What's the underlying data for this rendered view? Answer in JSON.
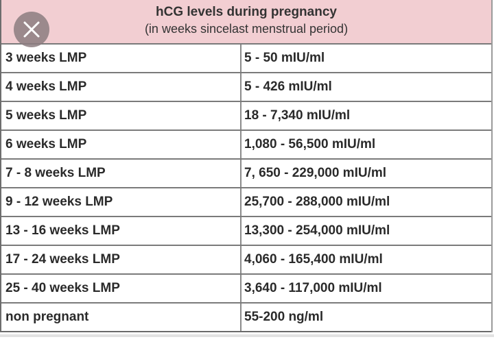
{
  "table": {
    "title": "hCG levels during pregnancy",
    "subtitle": "(in weeks sincelast menstrual period)",
    "rows": [
      {
        "weeks": "3 weeks LMP",
        "level": "5 - 50 mIU/ml"
      },
      {
        "weeks": "4 weeks LMP",
        "level": "5 - 426 mIU/ml"
      },
      {
        "weeks": "5 weeks LMP",
        "level": "18 - 7,340 mIU/ml"
      },
      {
        "weeks": "6 weeks LMP",
        "level": "1,080 - 56,500 mIU/ml"
      },
      {
        "weeks": "7 - 8 weeks LMP",
        "level": "7, 650 - 229,000 mIU/ml"
      },
      {
        "weeks": "9 - 12 weeks LMP",
        "level": "25,700 - 288,000 mIU/ml"
      },
      {
        "weeks": "13 - 16 weeks LMP",
        "level": "13,300 - 254,000 mIU/ml"
      },
      {
        "weeks": "17 - 24 weeks LMP",
        "level": "4,060 - 165,400 mIU/ml"
      },
      {
        "weeks": "25 - 40 weeks LMP",
        "level": "3,640 - 117,000 mIU/ml"
      },
      {
        "weeks": "non pregnant",
        "level": "55-200 ng/ml"
      }
    ]
  },
  "colors": {
    "header_bg": "#f2ced2",
    "close_bg": "#8c7d80"
  },
  "icons": {
    "close": "close-icon"
  }
}
